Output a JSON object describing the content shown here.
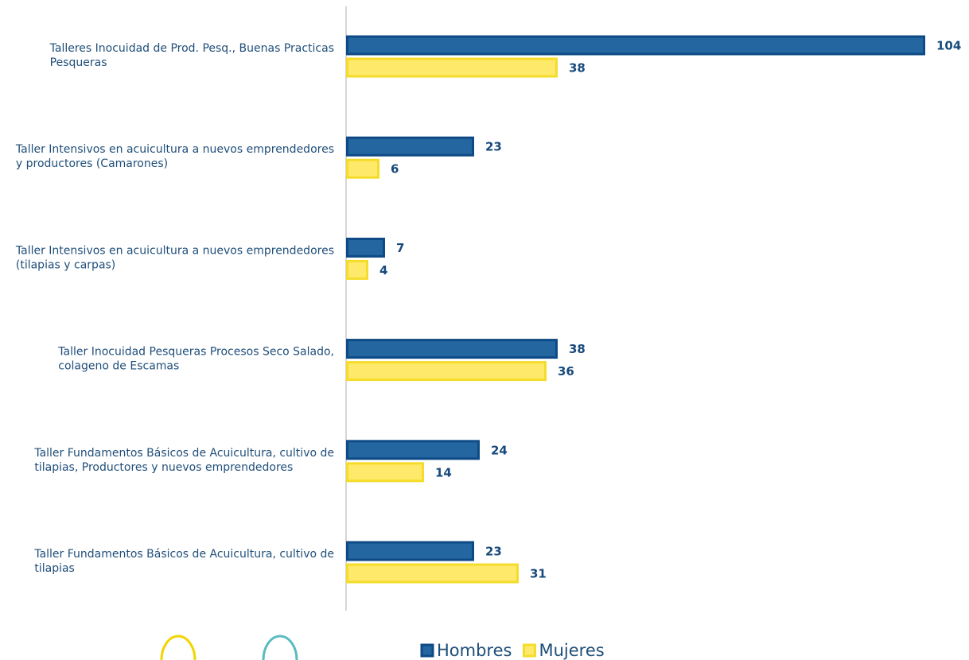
{
  "chart_data": {
    "type": "barh",
    "categories": [
      "Talleres Inocuidad de Prod. Pesq., Buenas Practicas Pesqueras",
      "Taller Intensivos en acuicultura a nuevos emprendedores y productores (Camarones)",
      "Taller Intensivos en acuicultura a nuevos emprendedores (tilapias y carpas)",
      "Taller Inocuidad Pesqueras  Procesos Seco Salado, colageno de Escamas",
      "Taller Fundamentos Básicos de Acuicultura, cultivo de tilapias, Productores  y nuevos emprendedores",
      "Taller Fundamentos Básicos de Acuicultura, cultivo de tilapias"
    ],
    "series": [
      {
        "name": "Hombres",
        "color": "#2366a0",
        "values": [
          104,
          23,
          7,
          38,
          24,
          23
        ]
      },
      {
        "name": "Mujeres",
        "color": "#ffe96b",
        "values": [
          38,
          6,
          4,
          36,
          14,
          31
        ]
      }
    ],
    "xlim": [
      0,
      105
    ],
    "legend": "bottom"
  }
}
